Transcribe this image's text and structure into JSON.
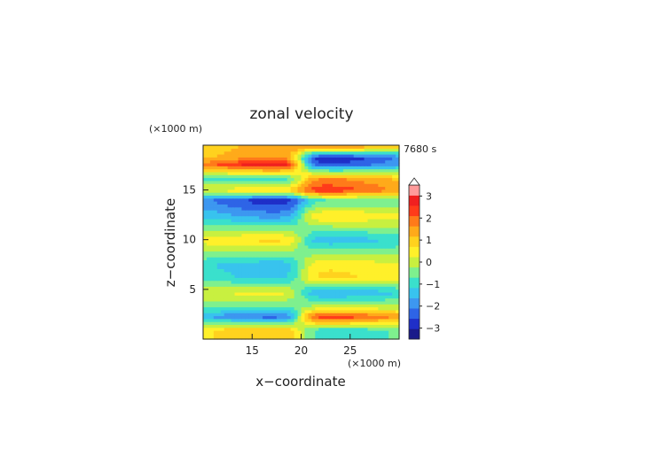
{
  "chart_data": {
    "type": "heatmap",
    "title": "zonal velocity",
    "xlabel": "x−coordinate",
    "ylabel": "z−coordinate",
    "x_unit": "(×1000 m)",
    "y_unit": "(×1000 m)",
    "time_label": "7680 s",
    "xlim": [
      10,
      30
    ],
    "ylim": [
      0,
      19.5
    ],
    "x_ticks": [
      15,
      20,
      25
    ],
    "y_ticks": [
      5,
      10,
      15
    ],
    "x_tick_labels": [
      "15",
      "20",
      "25"
    ],
    "y_tick_labels": [
      "5",
      "10",
      "15"
    ],
    "colorbar": {
      "min": -3.5,
      "max": 3.5,
      "step": 0.5,
      "extend": "max",
      "ticks": [
        3,
        2,
        1,
        0,
        -1,
        -2,
        -3
      ],
      "tick_labels": [
        "3",
        "2",
        "1",
        "0",
        "−1",
        "−2",
        "−3"
      ],
      "colors": [
        "#1a1a8a",
        "#1f2fc8",
        "#2e64e6",
        "#3d97f0",
        "#38c3ee",
        "#3ae0cc",
        "#7ef08e",
        "#c8f040",
        "#fff02a",
        "#ffd21e",
        "#ffaa1a",
        "#ff7a1a",
        "#ff3b1a",
        "#f02020",
        "#ff9b9b"
      ]
    },
    "layers": [
      {
        "z": 19.3,
        "value_left": 1.5,
        "value_right": 1.5
      },
      {
        "z": 18.3,
        "value_left": 1.8,
        "value_right": -2.6
      },
      {
        "z": 17.6,
        "value_left": 3.0,
        "value_right": -2.2
      },
      {
        "z": 16.2,
        "value_left": -0.8,
        "value_right": 1.8
      },
      {
        "z": 15.0,
        "value_left": 0.8,
        "value_right": 2.5
      },
      {
        "z": 14.0,
        "value_left": -2.5,
        "value_right": -0.5
      },
      {
        "z": 12.4,
        "value_left": -1.5,
        "value_right": 0.9
      },
      {
        "z": 10.0,
        "value_left": 1.0,
        "value_right": -1.2
      },
      {
        "z": 7.5,
        "value_left": -1.2,
        "value_right": 0.8
      },
      {
        "z": 6.2,
        "value_left": -1.0,
        "value_right": 1.0
      },
      {
        "z": 4.7,
        "value_left": 0.6,
        "value_right": -1.4
      },
      {
        "z": 3.2,
        "value_left": -0.5,
        "value_right": 0.3
      },
      {
        "z": 2.3,
        "value_left": -2.0,
        "value_right": 2.6
      },
      {
        "z": 1.0,
        "value_left": 1.2,
        "value_right": -0.6
      }
    ]
  }
}
